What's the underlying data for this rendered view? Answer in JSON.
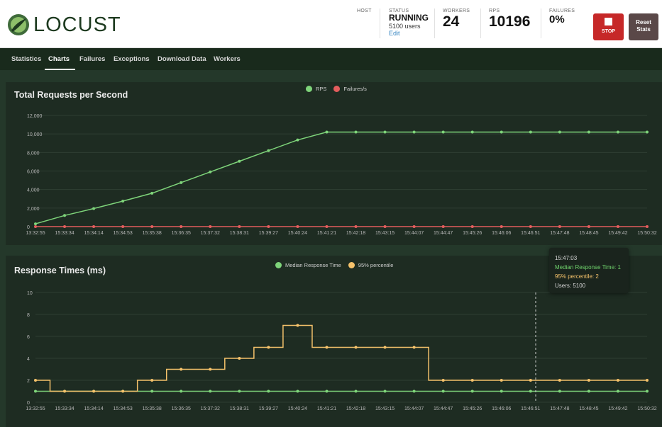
{
  "header": {
    "logo_text": "LOCUST",
    "host_label": "HOST",
    "status_label": "STATUS",
    "status_value": "RUNNING",
    "status_users": "5100 users",
    "edit_link": "Edit",
    "workers_label": "WORKERS",
    "workers_value": "24",
    "rps_label": "RPS",
    "rps_value": "10196",
    "failures_label": "FAILURES",
    "failures_value": "0%",
    "stop_label": "STOP",
    "reset_label_line1": "Reset",
    "reset_label_line2": "Stats"
  },
  "nav": {
    "tabs": [
      {
        "label": "Statistics",
        "active": false
      },
      {
        "label": "Charts",
        "active": true
      },
      {
        "label": "Failures",
        "active": false
      },
      {
        "label": "Exceptions",
        "active": false
      },
      {
        "label": "Download Data",
        "active": false
      },
      {
        "label": "Workers",
        "active": false
      }
    ]
  },
  "colors": {
    "green_series": "#7ed47a",
    "red_series": "#e35d5d",
    "yellow_series": "#f5c26b",
    "median_tooltip": "#6fd36c",
    "percentile_tooltip": "#f5c26b"
  },
  "chart_data": [
    {
      "type": "line",
      "title": "Total Requests per Second",
      "x": [
        "13:32:55",
        "15:33:34",
        "15:34:14",
        "15:34:53",
        "15:35:38",
        "15:36:35",
        "15:37:32",
        "15:38:31",
        "15:39:27",
        "15:40:24",
        "15:41:21",
        "15:42:18",
        "15:43:15",
        "15:44:07",
        "15:44:47",
        "15:45:26",
        "15:46:06",
        "15:46:51",
        "15:47:48",
        "15:48:45",
        "15:49:42",
        "15:50:32"
      ],
      "ylim": [
        0,
        12000
      ],
      "yticks": [
        "0",
        "2,000",
        "4,000",
        "6,000",
        "8,000",
        "10,000",
        "12,000"
      ],
      "grid": true,
      "legend": "top-center",
      "series": [
        {
          "name": "RPS",
          "color": "#7ed47a",
          "values": [
            300,
            1200,
            1950,
            2750,
            3600,
            4750,
            5900,
            7050,
            8200,
            9350,
            10200,
            10200,
            10200,
            10200,
            10200,
            10200,
            10200,
            10200,
            10200,
            10200,
            10200,
            10200
          ]
        },
        {
          "name": "Failures/s",
          "color": "#e35d5d",
          "values": [
            0,
            0,
            0,
            0,
            0,
            0,
            0,
            0,
            0,
            0,
            0,
            0,
            0,
            0,
            0,
            0,
            0,
            0,
            0,
            0,
            0,
            0
          ]
        }
      ]
    },
    {
      "type": "line",
      "title": "Response Times (ms)",
      "x": [
        "13:32:55",
        "15:33:34",
        "15:34:14",
        "15:34:53",
        "15:35:38",
        "15:36:35",
        "15:37:32",
        "15:38:31",
        "15:39:27",
        "15:40:24",
        "15:41:21",
        "15:42:18",
        "15:43:15",
        "15:44:07",
        "15:44:47",
        "15:45:26",
        "15:46:06",
        "15:46:51",
        "15:47:48",
        "15:48:45",
        "15:49:42",
        "15:50:32"
      ],
      "ylim": [
        0,
        10
      ],
      "yticks": [
        "0",
        "2",
        "4",
        "6",
        "8",
        "10"
      ],
      "grid": true,
      "legend": "top-center",
      "series": [
        {
          "name": "Median Response Time",
          "color": "#7ed47a",
          "values": [
            1,
            1,
            1,
            1,
            1,
            1,
            1,
            1,
            1,
            1,
            1,
            1,
            1,
            1,
            1,
            1,
            1,
            1,
            1,
            1,
            1,
            1
          ]
        },
        {
          "name": "95% percentile",
          "color": "#f5c26b",
          "values": [
            2,
            1,
            1,
            1,
            2,
            3,
            3,
            4,
            5,
            7,
            5,
            5,
            5,
            5,
            2,
            2,
            2,
            2,
            2,
            2,
            2,
            2
          ]
        }
      ],
      "tooltip": {
        "time": "15:47:03",
        "median": "Median Response Time: 1",
        "percentile": "95% percentile: 2",
        "users": "Users: 5100"
      }
    }
  ]
}
